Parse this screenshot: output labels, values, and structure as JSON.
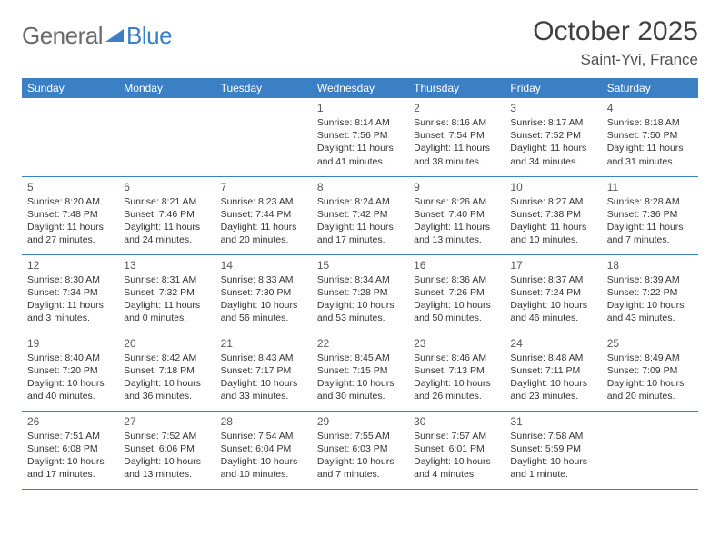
{
  "logo": {
    "general": "General",
    "blue": "Blue"
  },
  "title": "October 2025",
  "location": "Saint-Yvi, France",
  "header_bg": "#3b7fc4",
  "header_fg": "#ffffff",
  "dow": [
    "Sunday",
    "Monday",
    "Tuesday",
    "Wednesday",
    "Thursday",
    "Friday",
    "Saturday"
  ],
  "weeks": [
    [
      null,
      null,
      null,
      {
        "d": "1",
        "sr": "8:14 AM",
        "ss": "7:56 PM",
        "dl": "11 hours and 41 minutes."
      },
      {
        "d": "2",
        "sr": "8:16 AM",
        "ss": "7:54 PM",
        "dl": "11 hours and 38 minutes."
      },
      {
        "d": "3",
        "sr": "8:17 AM",
        "ss": "7:52 PM",
        "dl": "11 hours and 34 minutes."
      },
      {
        "d": "4",
        "sr": "8:18 AM",
        "ss": "7:50 PM",
        "dl": "11 hours and 31 minutes."
      }
    ],
    [
      {
        "d": "5",
        "sr": "8:20 AM",
        "ss": "7:48 PM",
        "dl": "11 hours and 27 minutes."
      },
      {
        "d": "6",
        "sr": "8:21 AM",
        "ss": "7:46 PM",
        "dl": "11 hours and 24 minutes."
      },
      {
        "d": "7",
        "sr": "8:23 AM",
        "ss": "7:44 PM",
        "dl": "11 hours and 20 minutes."
      },
      {
        "d": "8",
        "sr": "8:24 AM",
        "ss": "7:42 PM",
        "dl": "11 hours and 17 minutes."
      },
      {
        "d": "9",
        "sr": "8:26 AM",
        "ss": "7:40 PM",
        "dl": "11 hours and 13 minutes."
      },
      {
        "d": "10",
        "sr": "8:27 AM",
        "ss": "7:38 PM",
        "dl": "11 hours and 10 minutes."
      },
      {
        "d": "11",
        "sr": "8:28 AM",
        "ss": "7:36 PM",
        "dl": "11 hours and 7 minutes."
      }
    ],
    [
      {
        "d": "12",
        "sr": "8:30 AM",
        "ss": "7:34 PM",
        "dl": "11 hours and 3 minutes."
      },
      {
        "d": "13",
        "sr": "8:31 AM",
        "ss": "7:32 PM",
        "dl": "11 hours and 0 minutes."
      },
      {
        "d": "14",
        "sr": "8:33 AM",
        "ss": "7:30 PM",
        "dl": "10 hours and 56 minutes."
      },
      {
        "d": "15",
        "sr": "8:34 AM",
        "ss": "7:28 PM",
        "dl": "10 hours and 53 minutes."
      },
      {
        "d": "16",
        "sr": "8:36 AM",
        "ss": "7:26 PM",
        "dl": "10 hours and 50 minutes."
      },
      {
        "d": "17",
        "sr": "8:37 AM",
        "ss": "7:24 PM",
        "dl": "10 hours and 46 minutes."
      },
      {
        "d": "18",
        "sr": "8:39 AM",
        "ss": "7:22 PM",
        "dl": "10 hours and 43 minutes."
      }
    ],
    [
      {
        "d": "19",
        "sr": "8:40 AM",
        "ss": "7:20 PM",
        "dl": "10 hours and 40 minutes."
      },
      {
        "d": "20",
        "sr": "8:42 AM",
        "ss": "7:18 PM",
        "dl": "10 hours and 36 minutes."
      },
      {
        "d": "21",
        "sr": "8:43 AM",
        "ss": "7:17 PM",
        "dl": "10 hours and 33 minutes."
      },
      {
        "d": "22",
        "sr": "8:45 AM",
        "ss": "7:15 PM",
        "dl": "10 hours and 30 minutes."
      },
      {
        "d": "23",
        "sr": "8:46 AM",
        "ss": "7:13 PM",
        "dl": "10 hours and 26 minutes."
      },
      {
        "d": "24",
        "sr": "8:48 AM",
        "ss": "7:11 PM",
        "dl": "10 hours and 23 minutes."
      },
      {
        "d": "25",
        "sr": "8:49 AM",
        "ss": "7:09 PM",
        "dl": "10 hours and 20 minutes."
      }
    ],
    [
      {
        "d": "26",
        "sr": "7:51 AM",
        "ss": "6:08 PM",
        "dl": "10 hours and 17 minutes."
      },
      {
        "d": "27",
        "sr": "7:52 AM",
        "ss": "6:06 PM",
        "dl": "10 hours and 13 minutes."
      },
      {
        "d": "28",
        "sr": "7:54 AM",
        "ss": "6:04 PM",
        "dl": "10 hours and 10 minutes."
      },
      {
        "d": "29",
        "sr": "7:55 AM",
        "ss": "6:03 PM",
        "dl": "10 hours and 7 minutes."
      },
      {
        "d": "30",
        "sr": "7:57 AM",
        "ss": "6:01 PM",
        "dl": "10 hours and 4 minutes."
      },
      {
        "d": "31",
        "sr": "7:58 AM",
        "ss": "5:59 PM",
        "dl": "10 hours and 1 minute."
      },
      null
    ]
  ]
}
